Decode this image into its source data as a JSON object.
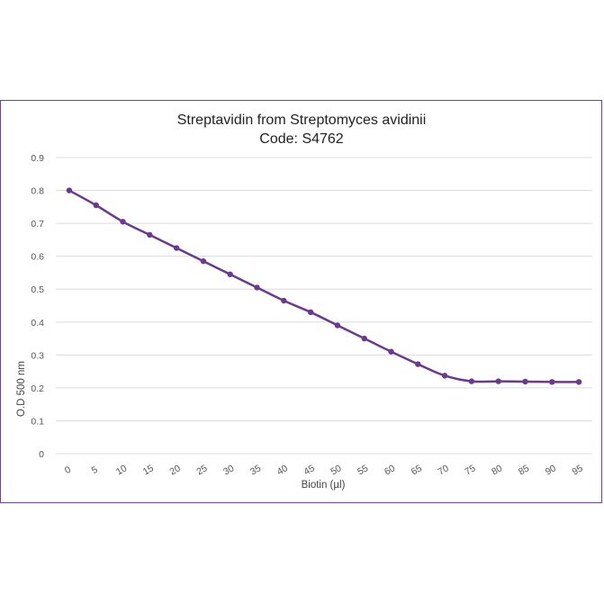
{
  "chart_data": {
    "type": "line",
    "title": "Streptavidin from Streptomyces avidinii",
    "subtitle": "Code: S4762",
    "xlabel": "Biotin (µl)",
    "ylabel": "O.D 500 nm",
    "ylim": [
      0,
      0.9
    ],
    "y_ticks": [
      "0",
      "0.1",
      "0.2",
      "0.3",
      "0.4",
      "0.5",
      "0.6",
      "0.7",
      "0.8",
      "0.9"
    ],
    "categories": [
      "0",
      "5",
      "10",
      "15",
      "20",
      "25",
      "30",
      "35",
      "40",
      "45",
      "50",
      "55",
      "60",
      "65",
      "70",
      "75",
      "80",
      "85",
      "90",
      "95"
    ],
    "series": [
      {
        "color": "#6b3a8c",
        "values": [
          0.8,
          0.755,
          0.705,
          0.665,
          0.625,
          0.585,
          0.545,
          0.505,
          0.465,
          0.43,
          0.39,
          0.35,
          0.31,
          0.272,
          0.237,
          0.22,
          0.22,
          0.219,
          0.218,
          0.218
        ]
      }
    ],
    "grid": true,
    "legend": "none"
  }
}
